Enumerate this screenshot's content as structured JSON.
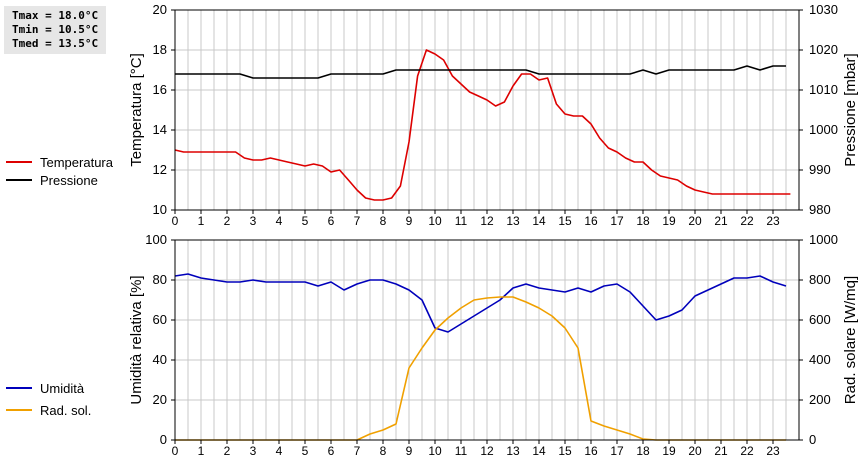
{
  "stats": {
    "tmax": "Tmax = 18.0°C",
    "tmin": "Tmin = 10.5°C",
    "tmed": "Tmed = 13.5°C"
  },
  "colors": {
    "temperature": "#dd0000",
    "pressure": "#000000",
    "humidity": "#0000bb",
    "solar": "#f0a000",
    "grid": "#c8c8c8"
  },
  "legend_top": [
    {
      "name": "Temperatura",
      "color": "#dd0000"
    },
    {
      "name": "Pressione",
      "color": "#000000"
    }
  ],
  "legend_bottom": [
    {
      "name": "Umidità",
      "color": "#0000bb"
    },
    {
      "name": "Rad. sol.",
      "color": "#f0a000"
    }
  ],
  "chart_data": [
    {
      "type": "line",
      "xlim": [
        0,
        24
      ],
      "x_ticks": [
        "0",
        "1",
        "2",
        "3",
        "4",
        "5",
        "6",
        "7",
        "8",
        "9",
        "10",
        "11",
        "12",
        "13",
        "14",
        "15",
        "16",
        "17",
        "18",
        "19",
        "20",
        "21",
        "22",
        "23"
      ],
      "ylabel": "Temperatura [°C]",
      "ylim": [
        10,
        20
      ],
      "y_ticks": [
        "10",
        "12",
        "14",
        "16",
        "18",
        "20"
      ],
      "y2label": "Pressione [mbar]",
      "y2lim": [
        980,
        1030
      ],
      "y2_ticks": [
        "980",
        "990",
        "1000",
        "1010",
        "1020",
        "1030"
      ],
      "grid": true,
      "series": [
        {
          "name": "Temperatura",
          "axis": "left",
          "color": "#dd0000",
          "x": [
            0,
            0.33,
            0.67,
            1,
            1.33,
            1.67,
            2,
            2.33,
            2.67,
            3,
            3.33,
            3.67,
            4,
            4.33,
            4.67,
            5,
            5.33,
            5.67,
            6,
            6.33,
            6.67,
            7,
            7.33,
            7.67,
            8,
            8.33,
            8.67,
            9,
            9.33,
            9.67,
            10,
            10.33,
            10.67,
            11,
            11.33,
            11.67,
            12,
            12.33,
            12.67,
            13,
            13.33,
            13.67,
            14,
            14.33,
            14.67,
            15,
            15.33,
            15.67,
            16,
            16.33,
            16.67,
            17,
            17.33,
            17.67,
            18,
            18.33,
            18.67,
            19,
            19.33,
            19.67,
            20,
            20.33,
            20.67,
            21,
            21.33,
            21.67,
            22,
            22.33,
            22.67,
            23,
            23.33,
            23.67
          ],
          "values": [
            13.0,
            12.9,
            12.9,
            12.9,
            12.9,
            12.9,
            12.9,
            12.9,
            12.6,
            12.5,
            12.5,
            12.6,
            12.5,
            12.4,
            12.3,
            12.2,
            12.3,
            12.2,
            11.9,
            12.0,
            11.5,
            11.0,
            10.6,
            10.5,
            10.5,
            10.6,
            11.2,
            13.4,
            16.7,
            18.0,
            17.8,
            17.5,
            16.7,
            16.3,
            15.9,
            15.7,
            15.5,
            15.2,
            15.4,
            16.2,
            16.8,
            16.8,
            16.5,
            16.6,
            15.3,
            14.8,
            14.7,
            14.7,
            14.3,
            13.6,
            13.1,
            12.9,
            12.6,
            12.4,
            12.4,
            12.0,
            11.7,
            11.6,
            11.5,
            11.2,
            11.0,
            10.9,
            10.8,
            10.8,
            10.8,
            10.8,
            10.8,
            10.8,
            10.8,
            10.8,
            10.8,
            10.8
          ]
        },
        {
          "name": "Pressione",
          "axis": "right",
          "color": "#000000",
          "x": [
            0,
            0.5,
            1,
            1.5,
            2,
            2.5,
            3,
            3.5,
            4,
            4.5,
            5,
            5.5,
            6,
            6.5,
            7,
            7.5,
            8,
            8.5,
            9,
            9.5,
            10,
            10.5,
            11,
            11.5,
            12,
            12.5,
            13,
            13.5,
            14,
            14.5,
            15,
            15.5,
            16,
            16.5,
            17,
            17.5,
            18,
            18.5,
            19,
            19.5,
            20,
            20.5,
            21,
            21.5,
            22,
            22.5,
            23,
            23.5
          ],
          "values": [
            1014,
            1014,
            1014,
            1014,
            1014,
            1014,
            1013,
            1013,
            1013,
            1013,
            1013,
            1013,
            1014,
            1014,
            1014,
            1014,
            1014,
            1015,
            1015,
            1015,
            1015,
            1015,
            1015,
            1015,
            1015,
            1015,
            1015,
            1015,
            1014,
            1014,
            1014,
            1014,
            1014,
            1014,
            1014,
            1014,
            1015,
            1014,
            1015,
            1015,
            1015,
            1015,
            1015,
            1015,
            1016,
            1015,
            1016,
            1016
          ]
        }
      ]
    },
    {
      "type": "line",
      "xlim": [
        0,
        24
      ],
      "x_ticks": [
        "0",
        "1",
        "2",
        "3",
        "4",
        "5",
        "6",
        "7",
        "8",
        "9",
        "10",
        "11",
        "12",
        "13",
        "14",
        "15",
        "16",
        "17",
        "18",
        "19",
        "20",
        "21",
        "22",
        "23"
      ],
      "ylabel": "Umidità relativa [%]",
      "ylim": [
        0,
        100
      ],
      "y_ticks": [
        "0",
        "20",
        "40",
        "60",
        "80",
        "100"
      ],
      "y2label": "Rad. solare [W/mq]",
      "y2lim": [
        0,
        1000
      ],
      "y2_ticks": [
        "0",
        "200",
        "400",
        "600",
        "800",
        "1000"
      ],
      "grid": true,
      "series": [
        {
          "name": "Umidità",
          "axis": "left",
          "color": "#0000bb",
          "x": [
            0,
            0.5,
            1,
            1.5,
            2,
            2.5,
            3,
            3.5,
            4,
            4.5,
            5,
            5.5,
            6,
            6.5,
            7,
            7.5,
            8,
            8.5,
            9,
            9.5,
            10,
            10.5,
            11,
            11.5,
            12,
            12.5,
            13,
            13.5,
            14,
            14.5,
            15,
            15.5,
            16,
            16.5,
            17,
            17.5,
            18,
            18.5,
            19,
            19.5,
            20,
            20.5,
            21,
            21.5,
            22,
            22.5,
            23,
            23.5
          ],
          "values": [
            82,
            83,
            81,
            80,
            79,
            79,
            80,
            79,
            79,
            79,
            79,
            77,
            79,
            75,
            78,
            80,
            80,
            78,
            75,
            70,
            56,
            54,
            58,
            62,
            66,
            70,
            76,
            78,
            76,
            75,
            74,
            76,
            74,
            77,
            78,
            74,
            67,
            60,
            62,
            65,
            72,
            75,
            78,
            81,
            81,
            82,
            79,
            77
          ]
        },
        {
          "name": "Rad. sol.",
          "axis": "right",
          "color": "#f0a000",
          "x": [
            0,
            1,
            2,
            3,
            4,
            5,
            6,
            7,
            7.5,
            8,
            8.5,
            9,
            9.5,
            10,
            10.5,
            11,
            11.5,
            12,
            12.5,
            13,
            13.5,
            14,
            14.5,
            15,
            15.5,
            16,
            16.5,
            17,
            17.5,
            18,
            18.5,
            19,
            20,
            21,
            22,
            23,
            23.5
          ],
          "values": [
            0,
            0,
            0,
            0,
            0,
            0,
            0,
            0,
            30,
            50,
            80,
            360,
            460,
            550,
            610,
            660,
            700,
            710,
            715,
            715,
            690,
            660,
            620,
            560,
            460,
            95,
            70,
            50,
            30,
            5,
            0,
            0,
            0,
            0,
            0,
            0,
            0
          ]
        }
      ]
    }
  ]
}
